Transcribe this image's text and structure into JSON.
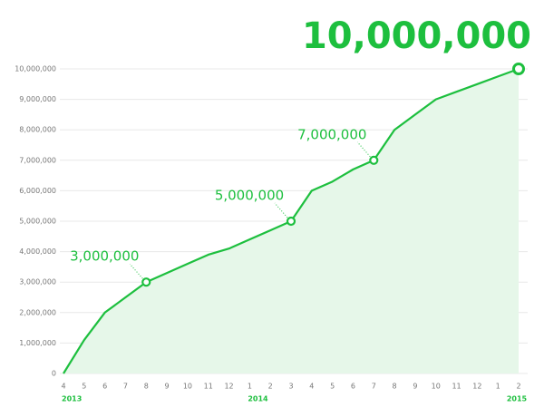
{
  "chart_data": {
    "type": "area",
    "categories": [
      "4",
      "5",
      "6",
      "7",
      "8",
      "9",
      "10",
      "11",
      "12",
      "1",
      "2",
      "3",
      "4",
      "5",
      "6",
      "7",
      "8",
      "9",
      "10",
      "11",
      "12",
      "1",
      "2"
    ],
    "category_years": [
      "2013",
      null,
      null,
      null,
      null,
      null,
      null,
      null,
      null,
      "2014",
      null,
      null,
      null,
      null,
      null,
      null,
      null,
      null,
      null,
      null,
      null,
      null,
      "2015"
    ],
    "values": [
      0,
      1100000,
      2000000,
      2500000,
      3000000,
      3300000,
      3600000,
      3900000,
      4100000,
      4400000,
      4700000,
      5000000,
      6000000,
      6300000,
      6700000,
      7000000,
      8000000,
      8500000,
      9000000,
      9250000,
      9500000,
      9750000,
      10000000
    ],
    "value_labels": [
      null,
      null,
      null,
      null,
      "3,000,000",
      null,
      null,
      null,
      null,
      null,
      null,
      "5,000,000",
      null,
      null,
      null,
      "7,000,000",
      null,
      null,
      null,
      null,
      null,
      null,
      "10,000,000"
    ],
    "color": "#1dbf3e",
    "ylim": [
      0,
      10000000
    ],
    "yticks": [
      0,
      {
        "value": 1000000,
        "label": "1,000,000"
      },
      {
        "value": 2000000,
        "label": "2,000,000"
      },
      {
        "value": 3000000,
        "label": "3,000,000"
      },
      {
        "value": 4000000,
        "label": "4,000,000"
      },
      {
        "value": 5000000,
        "label": "5,000,000"
      },
      {
        "value": 6000000,
        "label": "6,000,000"
      },
      {
        "value": 7000000,
        "label": "7,000,000"
      },
      {
        "value": 8000000,
        "label": "8,000,000"
      },
      {
        "value": 9000000,
        "label": "9,000,000"
      },
      {
        "value": 10000000,
        "label": "10,000,000"
      }
    ],
    "grid": true
  }
}
